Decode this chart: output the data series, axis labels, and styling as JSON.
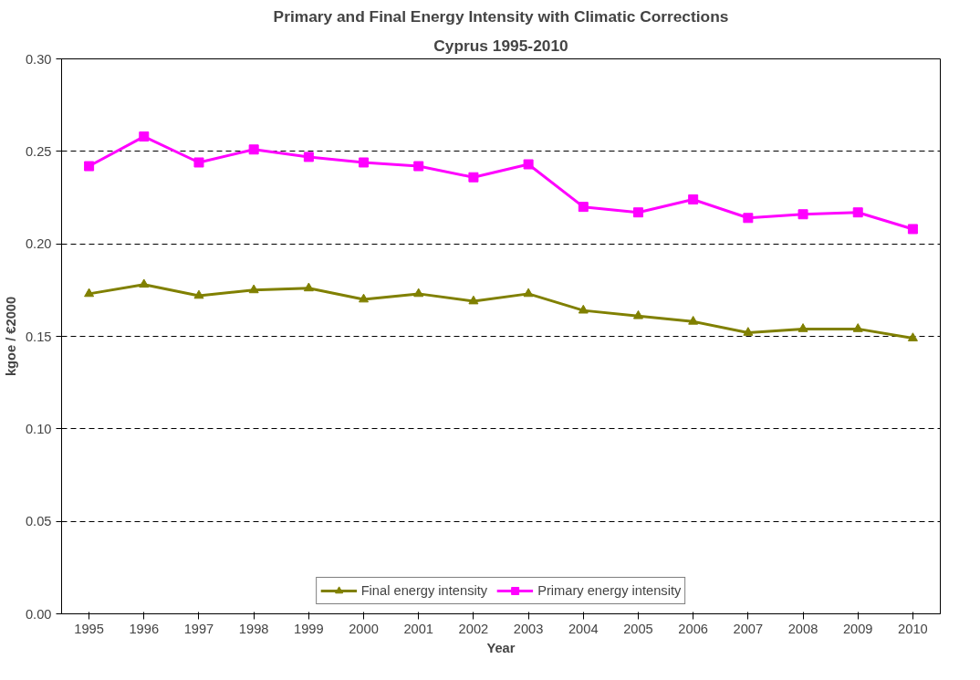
{
  "chart_data": {
    "type": "line",
    "title": "Primary and Final Energy Intensity with Climatic Corrections",
    "subtitle": "Cyprus 1995-2010",
    "xlabel": "Year",
    "ylabel": "kgoe / €2000",
    "categories": [
      "1995",
      "1996",
      "1997",
      "1998",
      "1999",
      "2000",
      "2001",
      "2002",
      "2003",
      "2004",
      "2005",
      "2006",
      "2007",
      "2008",
      "2009",
      "2010"
    ],
    "series": [
      {
        "name": "Final energy intensity",
        "color": "#808000",
        "marker": "triangle",
        "values": [
          0.173,
          0.178,
          0.172,
          0.175,
          0.176,
          0.17,
          0.173,
          0.169,
          0.173,
          0.164,
          0.161,
          0.158,
          0.152,
          0.154,
          0.154,
          0.149
        ]
      },
      {
        "name": "Primary energy intensity",
        "color": "#ff00ff",
        "marker": "square",
        "values": [
          0.242,
          0.258,
          0.244,
          0.251,
          0.247,
          0.244,
          0.242,
          0.236,
          0.243,
          0.22,
          0.217,
          0.224,
          0.214,
          0.216,
          0.217,
          0.208
        ]
      }
    ],
    "ylim": [
      0,
      0.3
    ],
    "yticks": [
      {
        "value": 0,
        "label": "0.00"
      },
      {
        "value": 0.05,
        "label": "0.05"
      },
      {
        "value": 0.1,
        "label": "0.10"
      },
      {
        "value": 0.15,
        "label": "0.15"
      },
      {
        "value": 0.2,
        "label": "0.20"
      },
      {
        "value": 0.25,
        "label": "0.25"
      },
      {
        "value": 0.3,
        "label": "0.30"
      }
    ],
    "grid": "y",
    "legend": "bottom",
    "line_style": "solid"
  }
}
